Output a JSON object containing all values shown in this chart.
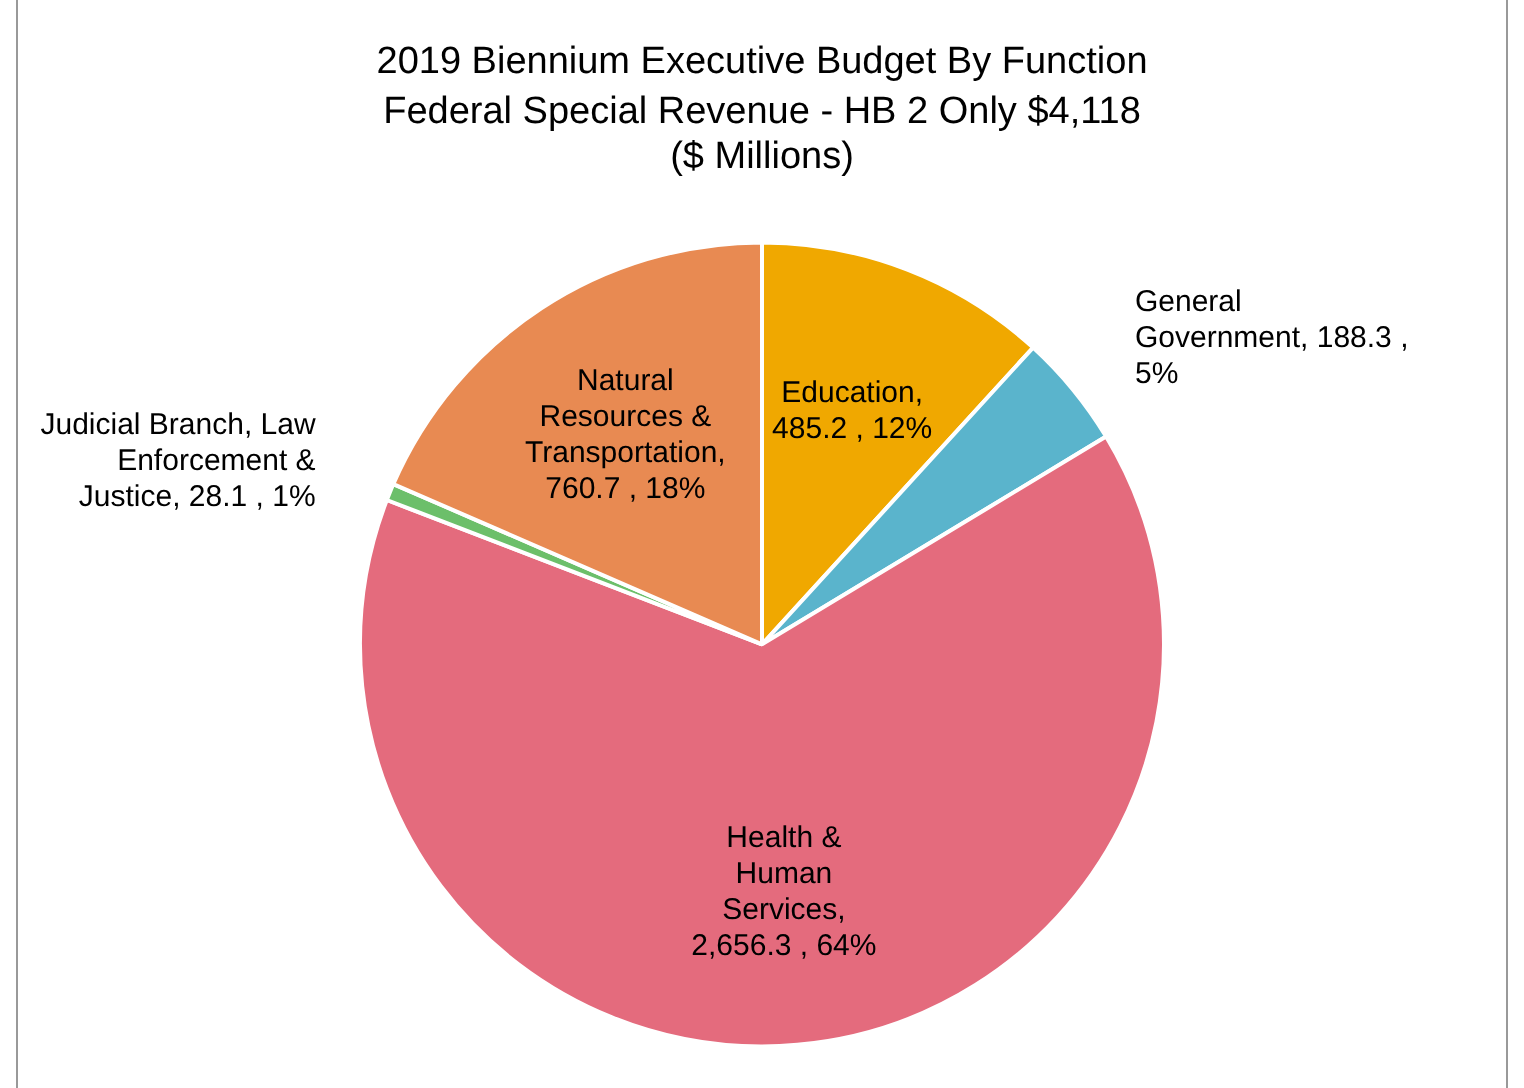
{
  "chart_data": {
    "type": "pie",
    "title": "2019 Biennium Executive Budget By Function",
    "subtitle": "Federal Special Revenue - HB 2 Only $4,118\n($ Millions)",
    "categories": [
      "Education",
      "General Government",
      "Health & Human Services",
      "Judicial Branch, Law Enforcement & Justice",
      "Natural Resources & Transportation"
    ],
    "values": [
      485.2,
      188.3,
      2656.3,
      28.1,
      760.7
    ],
    "colors": [
      "#f0a800",
      "#5ab4cc",
      "#e46b7d",
      "#6cbf6a",
      "#e88a52"
    ],
    "value_labels": [
      ", 485.2 , 12%",
      ", 188.3 , 5%",
      ", 2,656.3 , 64%",
      ", 28.1 , 1%",
      ", 760.7 , 18%"
    ],
    "legend": false
  }
}
